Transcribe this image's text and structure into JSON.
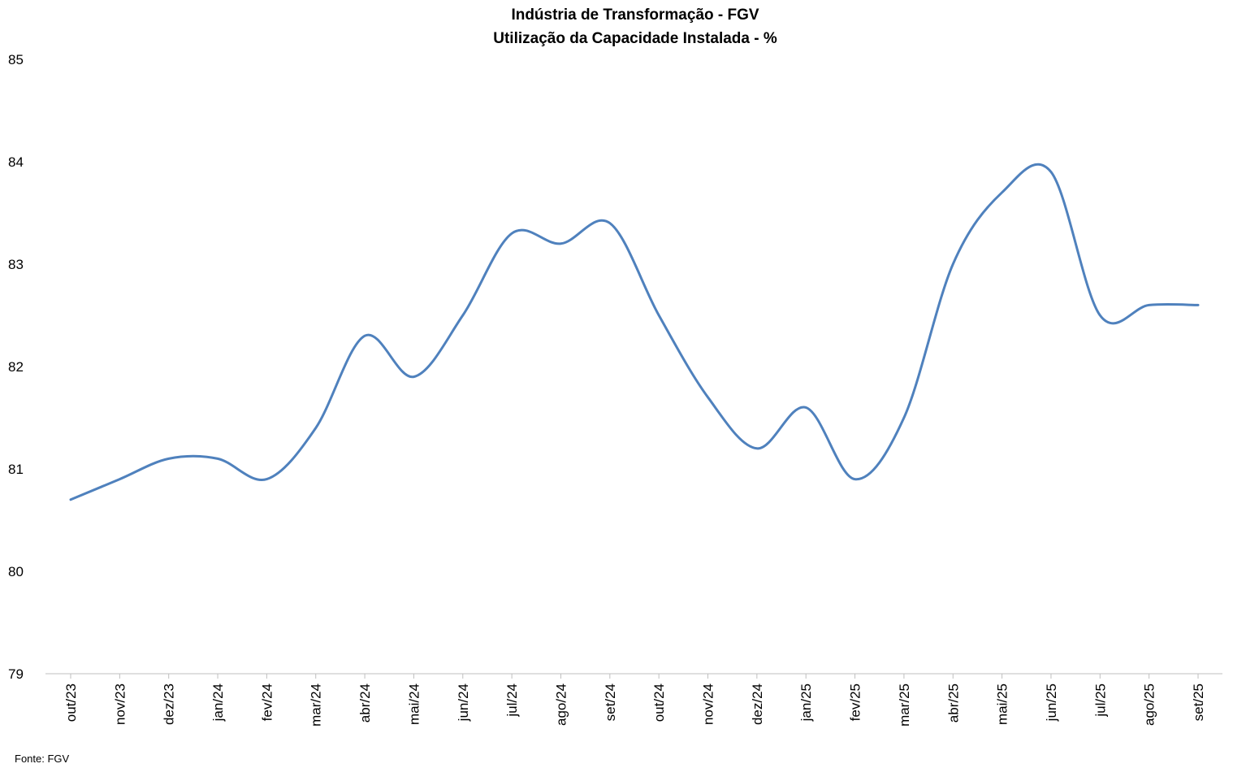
{
  "chart_data": {
    "type": "line",
    "title": "Indústria de Transformação - FGV",
    "subtitle": "Utilização da Capacidade Instalada - %",
    "source": "Fonte: FGV",
    "categories": [
      "out/23",
      "nov/23",
      "dez/23",
      "jan/24",
      "fev/24",
      "mar/24",
      "abr/24",
      "mai/24",
      "jun/24",
      "jul/24",
      "ago/24",
      "set/24",
      "out/24",
      "nov/24",
      "dez/24",
      "jan/25",
      "fev/25",
      "mar/25",
      "abr/25",
      "mai/25",
      "jun/25",
      "jul/25",
      "ago/25",
      "set/25"
    ],
    "series": [
      {
        "values": [
          80.7,
          80.9,
          81.1,
          81.1,
          80.9,
          81.4,
          82.3,
          81.9,
          82.5,
          83.3,
          83.2,
          83.4,
          82.5,
          81.7,
          81.2,
          81.6,
          80.9,
          81.5,
          83.0,
          83.7,
          83.9,
          82.5,
          82.6,
          82.6
        ],
        "color": "#4f81bd"
      }
    ],
    "ylim": [
      79,
      85
    ],
    "yticks": [
      "79",
      "80",
      "81",
      "82",
      "83",
      "84",
      "85"
    ],
    "grid": false,
    "legend": "none",
    "smooth": true
  }
}
